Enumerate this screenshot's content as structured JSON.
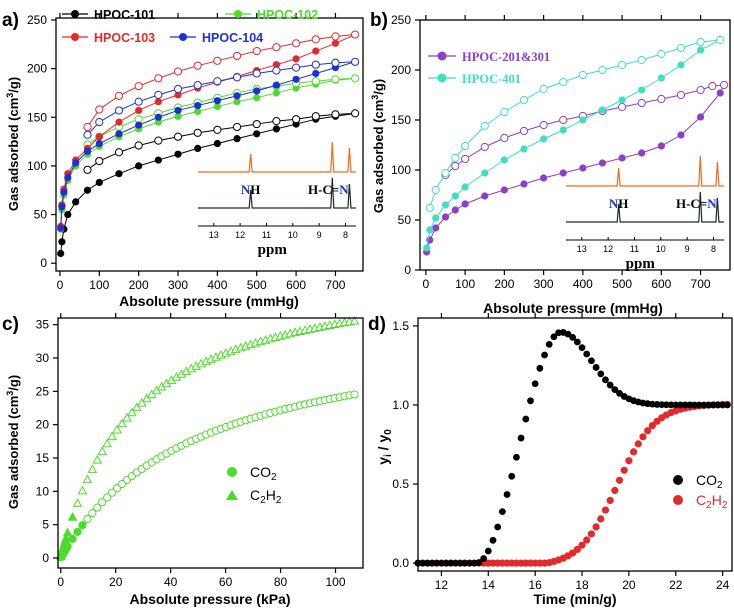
{
  "colors": {
    "black": "#000000",
    "green": "#4ddc2a",
    "red": "#e5292a",
    "blue": "#1e2fd6",
    "purple": "#8e3ec9",
    "cyan": "#3fdfc2",
    "orange": "#f06a1e",
    "nmrDark": "#1a2a26"
  },
  "chart_data": [
    {
      "panel": "a)",
      "type": "line",
      "xlabel": "Absolute pressure (mmHg)",
      "ylabel": "Gas adsorbed (cm³/g)",
      "xlim": [
        -10,
        770
      ],
      "ylim": [
        -8,
        252
      ],
      "xticks": [
        "0",
        "100",
        "200",
        "300",
        "400",
        "500",
        "600",
        "700"
      ],
      "yticks": [
        "0",
        "50",
        "100",
        "150",
        "200",
        "250"
      ],
      "legend": [
        "HPOC-101",
        "HPOC-102",
        "HPOC-103",
        "HPOC-104"
      ],
      "series": [
        {
          "name": "HPOC-101",
          "color": "black",
          "adsorption": [
            [
              2,
              10
            ],
            [
              5,
              22
            ],
            [
              10,
              35
            ],
            [
              20,
              50
            ],
            [
              40,
              63
            ],
            [
              70,
              75
            ],
            [
              100,
              83
            ],
            [
              150,
              92
            ],
            [
              200,
              100
            ],
            [
              250,
              106
            ],
            [
              300,
              112
            ],
            [
              350,
              118
            ],
            [
              400,
              123
            ],
            [
              450,
              128
            ],
            [
              500,
              133
            ],
            [
              550,
              138
            ],
            [
              600,
              143
            ],
            [
              650,
              148
            ],
            [
              700,
              151
            ],
            [
              750,
              154
            ]
          ],
          "desorption": [
            [
              750,
              154
            ],
            [
              700,
              153
            ],
            [
              650,
              151
            ],
            [
              600,
              148
            ],
            [
              550,
              146
            ],
            [
              500,
              143
            ],
            [
              450,
              140
            ],
            [
              400,
              137
            ],
            [
              350,
              134
            ],
            [
              300,
              130
            ],
            [
              250,
              126
            ],
            [
              200,
              121
            ],
            [
              150,
              114
            ],
            [
              100,
              105
            ],
            [
              70,
              96
            ]
          ]
        },
        {
          "name": "HPOC-102",
          "color": "green",
          "adsorption": [
            [
              2,
              35
            ],
            [
              5,
              55
            ],
            [
              10,
              70
            ],
            [
              20,
              85
            ],
            [
              40,
              100
            ],
            [
              70,
              112
            ],
            [
              100,
              120
            ],
            [
              150,
              130
            ],
            [
              200,
              138
            ],
            [
              250,
              145
            ],
            [
              300,
              151
            ],
            [
              350,
              156
            ],
            [
              400,
              161
            ],
            [
              450,
              166
            ],
            [
              500,
              170
            ],
            [
              550,
              175
            ],
            [
              600,
              180
            ],
            [
              650,
              184
            ],
            [
              700,
              188
            ],
            [
              750,
              190
            ]
          ],
          "desorption": [
            [
              750,
              190
            ],
            [
              700,
              189
            ],
            [
              650,
              187
            ],
            [
              600,
              185
            ],
            [
              550,
              182
            ],
            [
              500,
              179
            ],
            [
              450,
              175
            ],
            [
              400,
              170
            ],
            [
              350,
              165
            ],
            [
              300,
              160
            ],
            [
              250,
              154
            ],
            [
              200,
              148
            ],
            [
              150,
              140
            ],
            [
              100,
              130
            ],
            [
              70,
              122
            ]
          ]
        },
        {
          "name": "HPOC-103",
          "color": "red",
          "adsorption": [
            [
              2,
              38
            ],
            [
              5,
              60
            ],
            [
              10,
              76
            ],
            [
              20,
              92
            ],
            [
              40,
              106
            ],
            [
              70,
              118
            ],
            [
              100,
              130
            ],
            [
              150,
              145
            ],
            [
              200,
              157
            ],
            [
              250,
              166
            ],
            [
              300,
              173
            ],
            [
              350,
              180
            ],
            [
              400,
              186
            ],
            [
              450,
              192
            ],
            [
              500,
              198
            ],
            [
              550,
              204
            ],
            [
              600,
              210
            ],
            [
              650,
              218
            ],
            [
              700,
              226
            ],
            [
              750,
              235
            ]
          ],
          "desorption": [
            [
              750,
              235
            ],
            [
              700,
              233
            ],
            [
              650,
              230
            ],
            [
              600,
              226
            ],
            [
              550,
              222
            ],
            [
              500,
              218
            ],
            [
              450,
              213
            ],
            [
              400,
              208
            ],
            [
              350,
              203
            ],
            [
              300,
              197
            ],
            [
              250,
              190
            ],
            [
              200,
              182
            ],
            [
              150,
              172
            ],
            [
              100,
              158
            ],
            [
              70,
              140
            ]
          ]
        },
        {
          "name": "HPOC-104",
          "color": "blue",
          "adsorption": [
            [
              2,
              36
            ],
            [
              5,
              58
            ],
            [
              10,
              73
            ],
            [
              20,
              88
            ],
            [
              40,
              103
            ],
            [
              70,
              115
            ],
            [
              100,
              123
            ],
            [
              150,
              133
            ],
            [
              200,
              142
            ],
            [
              250,
              150
            ],
            [
              300,
              157
            ],
            [
              350,
              162
            ],
            [
              400,
              167
            ],
            [
              450,
              172
            ],
            [
              500,
              177
            ],
            [
              550,
              183
            ],
            [
              600,
              189
            ],
            [
              650,
              195
            ],
            [
              700,
              201
            ],
            [
              750,
              207
            ]
          ],
          "desorption": [
            [
              750,
              207
            ],
            [
              700,
              206
            ],
            [
              650,
              204
            ],
            [
              600,
              201
            ],
            [
              550,
              198
            ],
            [
              500,
              195
            ],
            [
              450,
              191
            ],
            [
              400,
              187
            ],
            [
              350,
              183
            ],
            [
              300,
              179
            ],
            [
              250,
              173
            ],
            [
              200,
              166
            ],
            [
              150,
              157
            ],
            [
              100,
              145
            ],
            [
              70,
              132
            ]
          ]
        }
      ],
      "inset": {
        "type": "nmr",
        "xlabel": "ppm",
        "xticks": [
          "13",
          "12",
          "11",
          "10",
          "9",
          "8"
        ],
        "labels": [
          "NH",
          "H-C=N"
        ]
      }
    },
    {
      "panel": "b)",
      "type": "line",
      "xlabel": "Absolute pressure (mmHg)",
      "ylabel": "Gas adsorbed (cm³/g)",
      "xlim": [
        -15,
        775
      ],
      "ylim": [
        0,
        250
      ],
      "xticks": [
        "0",
        "100",
        "200",
        "300",
        "400",
        "500",
        "600",
        "700"
      ],
      "yticks": [
        "0",
        "50",
        "100",
        "150",
        "200",
        "250"
      ],
      "legend": [
        "HPOC-201&301",
        "HPOC-401"
      ],
      "series": [
        {
          "name": "HPOC-201&301",
          "color": "purple",
          "adsorption": [
            [
              2,
              18
            ],
            [
              10,
              30
            ],
            [
              25,
              42
            ],
            [
              50,
              53
            ],
            [
              75,
              60
            ],
            [
              100,
              66
            ],
            [
              150,
              74
            ],
            [
              200,
              80
            ],
            [
              250,
              86
            ],
            [
              300,
              92
            ],
            [
              350,
              97
            ],
            [
              400,
              102
            ],
            [
              450,
              107
            ],
            [
              500,
              112
            ],
            [
              550,
              117
            ],
            [
              600,
              124
            ],
            [
              650,
              135
            ],
            [
              700,
              153
            ],
            [
              750,
              177
            ],
            [
              760,
              185
            ]
          ],
          "desorption": [
            [
              760,
              185
            ],
            [
              730,
              184
            ],
            [
              700,
              180
            ],
            [
              650,
              175
            ],
            [
              600,
              171
            ],
            [
              550,
              167
            ],
            [
              500,
              163
            ],
            [
              450,
              159
            ],
            [
              400,
              154
            ],
            [
              350,
              150
            ],
            [
              300,
              145
            ],
            [
              250,
              139
            ],
            [
              200,
              132
            ],
            [
              150,
              123
            ],
            [
              100,
              111
            ],
            [
              75,
              104
            ],
            [
              50,
              95
            ]
          ]
        },
        {
          "name": "HPOC-401",
          "color": "cyan",
          "adsorption": [
            [
              2,
              22
            ],
            [
              10,
              40
            ],
            [
              25,
              52
            ],
            [
              50,
              65
            ],
            [
              75,
              74
            ],
            [
              100,
              83
            ],
            [
              150,
              97
            ],
            [
              200,
              110
            ],
            [
              250,
              121
            ],
            [
              300,
              131
            ],
            [
              350,
              140
            ],
            [
              400,
              150
            ],
            [
              450,
              160
            ],
            [
              500,
              170
            ],
            [
              550,
              180
            ],
            [
              600,
              192
            ],
            [
              650,
              205
            ],
            [
              700,
              220
            ],
            [
              750,
              230
            ]
          ],
          "desorption": [
            [
              750,
              230
            ],
            [
              700,
              228
            ],
            [
              650,
              222
            ],
            [
              600,
              216
            ],
            [
              550,
              210
            ],
            [
              500,
              205
            ],
            [
              450,
              200
            ],
            [
              400,
              195
            ],
            [
              350,
              188
            ],
            [
              300,
              181
            ],
            [
              250,
              170
            ],
            [
              200,
              158
            ],
            [
              150,
              144
            ],
            [
              100,
              124
            ],
            [
              75,
              112
            ],
            [
              50,
              97
            ],
            [
              25,
              80
            ],
            [
              10,
              62
            ]
          ]
        }
      ],
      "inset": {
        "type": "nmr",
        "xlabel": "ppm",
        "xticks": [
          "13",
          "12",
          "11",
          "10",
          "9",
          "8"
        ],
        "labels": [
          "NH",
          "H-C=N"
        ]
      }
    },
    {
      "panel": "c)",
      "type": "scatter",
      "xlabel": "Absolute pressure (kPa)",
      "ylabel": "Gas adsorbed (cm³/g)",
      "xlim": [
        -1,
        110
      ],
      "ylim": [
        -1.5,
        36
      ],
      "xticks": [
        "0",
        "20",
        "40",
        "60",
        "80",
        "100"
      ],
      "yticks": [
        "0",
        "5",
        "10",
        "15",
        "20",
        "25",
        "30",
        "35"
      ],
      "legend": [
        "CO2",
        "C2H2"
      ],
      "series": [
        {
          "name": "CO2",
          "color": "green",
          "marker": "circle",
          "curve": {
            "max": 36,
            "k": 50
          }
        },
        {
          "name": "C2H2",
          "color": "green",
          "marker": "triangle",
          "curve": {
            "max": 44.5,
            "k": 27
          }
        }
      ]
    },
    {
      "panel": "d)",
      "type": "scatter",
      "xlabel": "Time (min/g)",
      "ylabel": "yi / y0",
      "xlim": [
        11,
        24.4
      ],
      "ylim": [
        -0.05,
        1.55
      ],
      "xticks": [
        "12",
        "14",
        "16",
        "18",
        "20",
        "22",
        "24"
      ],
      "yticks": [
        "0.0",
        "0.5",
        "1.0",
        "1.5"
      ],
      "legend": [
        "CO2",
        "C2H2"
      ],
      "series": [
        {
          "name": "CO2",
          "color": "black",
          "breakthrough_min": 13.5,
          "peak": [
            17.1,
            1.46
          ],
          "plateau": 1.0
        },
        {
          "name": "C2H2",
          "color": "red",
          "breakthrough_min": 16.5,
          "midpoint": 19.5,
          "plateau": 1.01
        }
      ]
    }
  ]
}
